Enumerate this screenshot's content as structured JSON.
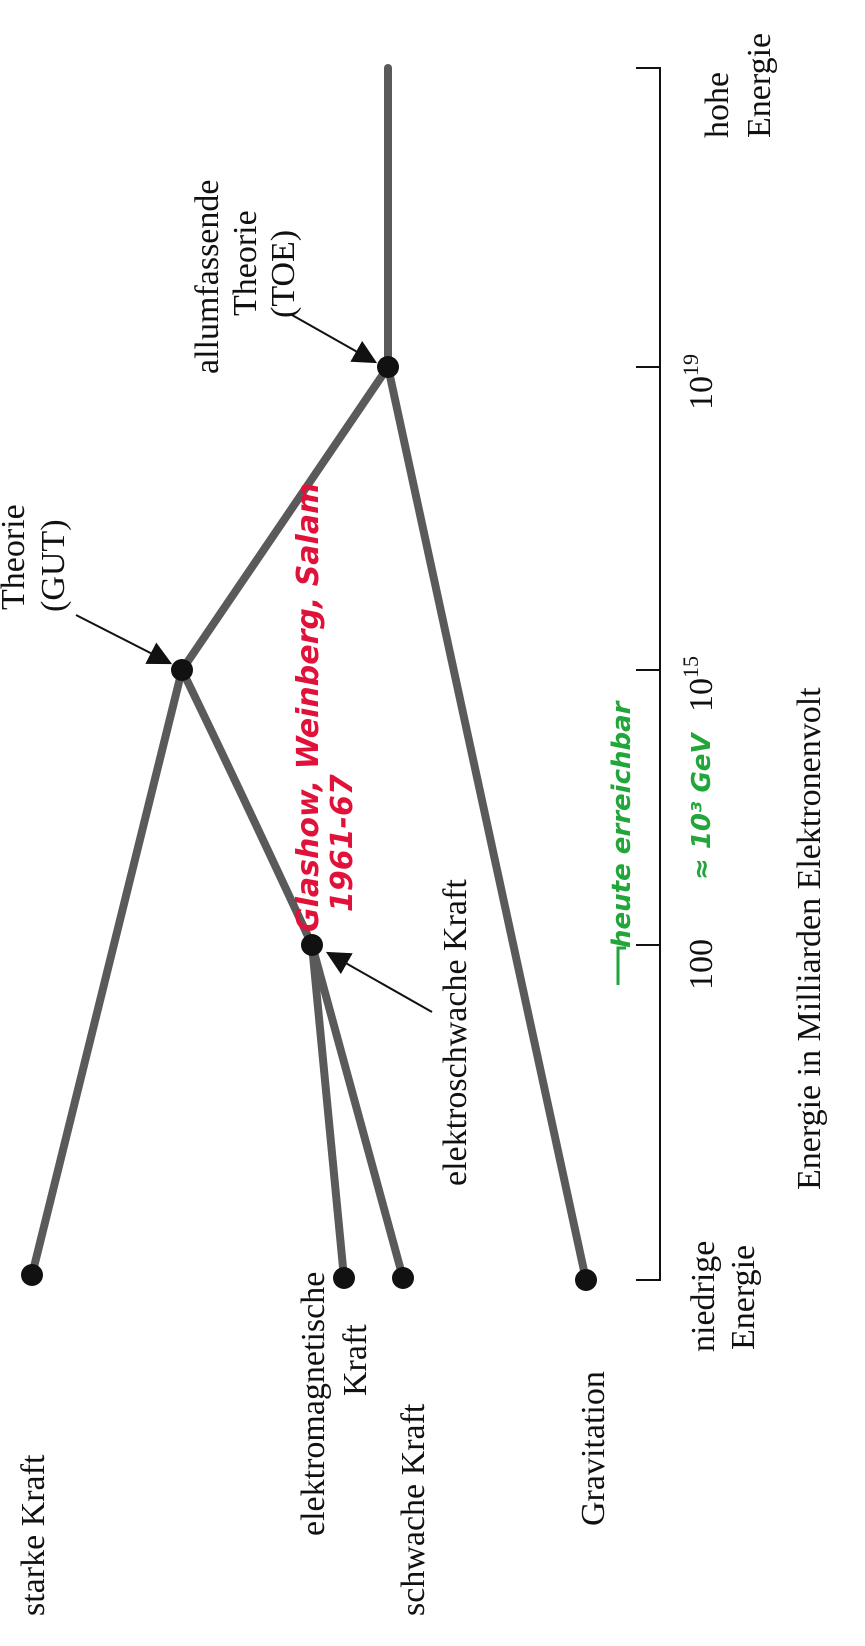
{
  "forces": {
    "strong": "starke Kraft",
    "em_line1": "elektromagnetische",
    "em_line2": "Kraft",
    "weak": "schwache Kraft",
    "gravity": "Gravitation"
  },
  "unified": {
    "electroweak": "elektroschwache Kraft",
    "gut_line1": "Theorie",
    "gut_line2": "(GUT)",
    "toe_line1": "allumfassende",
    "toe_line2": "Theorie",
    "toe_line3": "(TOE)"
  },
  "axis": {
    "title": "Energie in Milliarden Elektronenvolt",
    "low_line1": "niedrige",
    "low_line2": "Energie",
    "high_line1": "hohe",
    "high_line2": "Energie",
    "tick_100": "100",
    "tick_1e15_base": "10",
    "tick_1e15_exp": "15",
    "tick_1e19_base": "10",
    "tick_1e19_exp": "19"
  },
  "annotations": {
    "red_line1": "Glashow, Weinberg, Salam",
    "red_line2": "1961-67",
    "green_line1": "heute erreichbar",
    "green_line2": "≈ 10³ GeV"
  },
  "colors": {
    "branch": "#5a5a5a",
    "node": "#111111",
    "red_note": "#e0123a",
    "green_note": "#22a63a"
  }
}
